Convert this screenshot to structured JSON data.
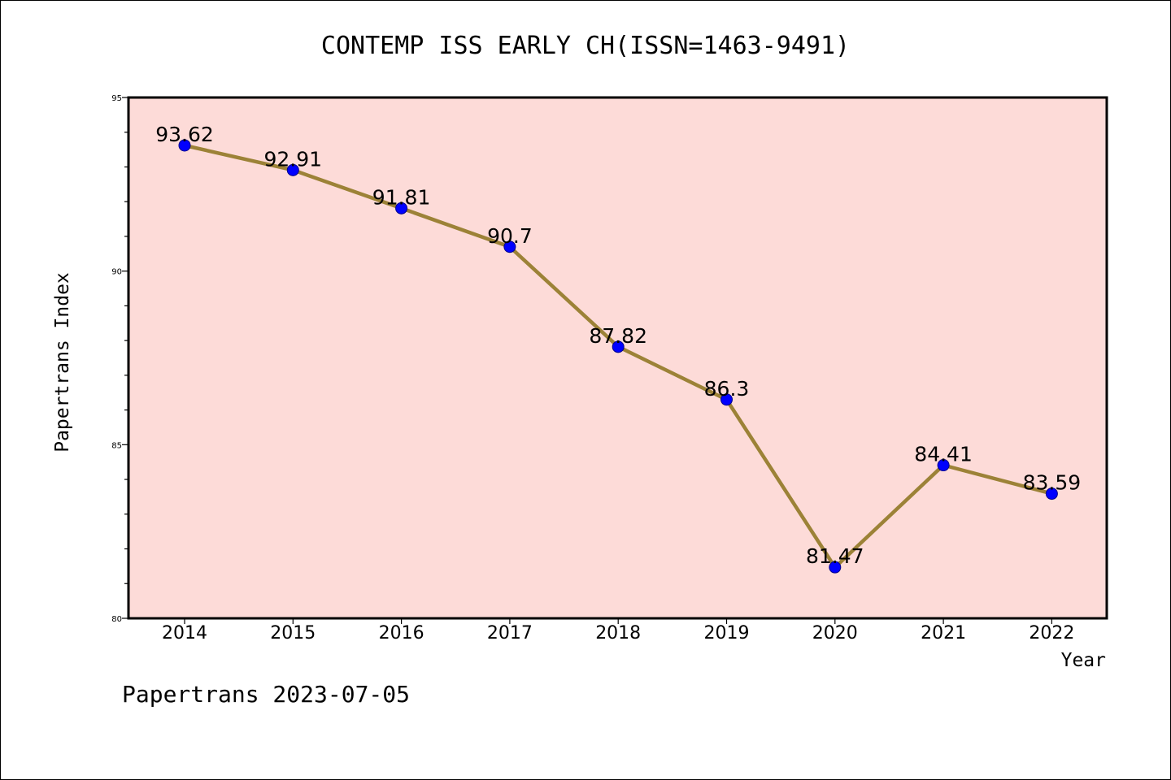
{
  "footer": "Papertrans 2023-07-05",
  "colors": {
    "plot_background": "#fddbd8",
    "line": "#9c8237",
    "marker": "#0000ff",
    "marker_edge": "#00008b",
    "axis": "#000000"
  },
  "chart_data": {
    "type": "line",
    "title": "CONTEMP ISS EARLY CH(ISSN=1463-9491)",
    "xlabel": "Year",
    "ylabel": "Papertrans Index",
    "x": [
      "2014",
      "2015",
      "2016",
      "2017",
      "2018",
      "2019",
      "2020",
      "2021",
      "2022"
    ],
    "series": [
      {
        "values": [
          93.62,
          92.91,
          91.81,
          90.7,
          87.82,
          86.3,
          81.47,
          84.41,
          83.59
        ]
      }
    ],
    "data_labels": [
      "93.62",
      "92.91",
      "91.81",
      "90.7",
      "87.82",
      "86.3",
      "81.47",
      "84.41",
      "83.59"
    ],
    "ylim": [
      80,
      95
    ],
    "yticks": [
      80,
      85,
      90,
      95
    ],
    "ytick_labels": [
      "80",
      "85",
      "90",
      "95"
    ],
    "y_minor_step": 1,
    "grid": false,
    "legend": "none"
  }
}
